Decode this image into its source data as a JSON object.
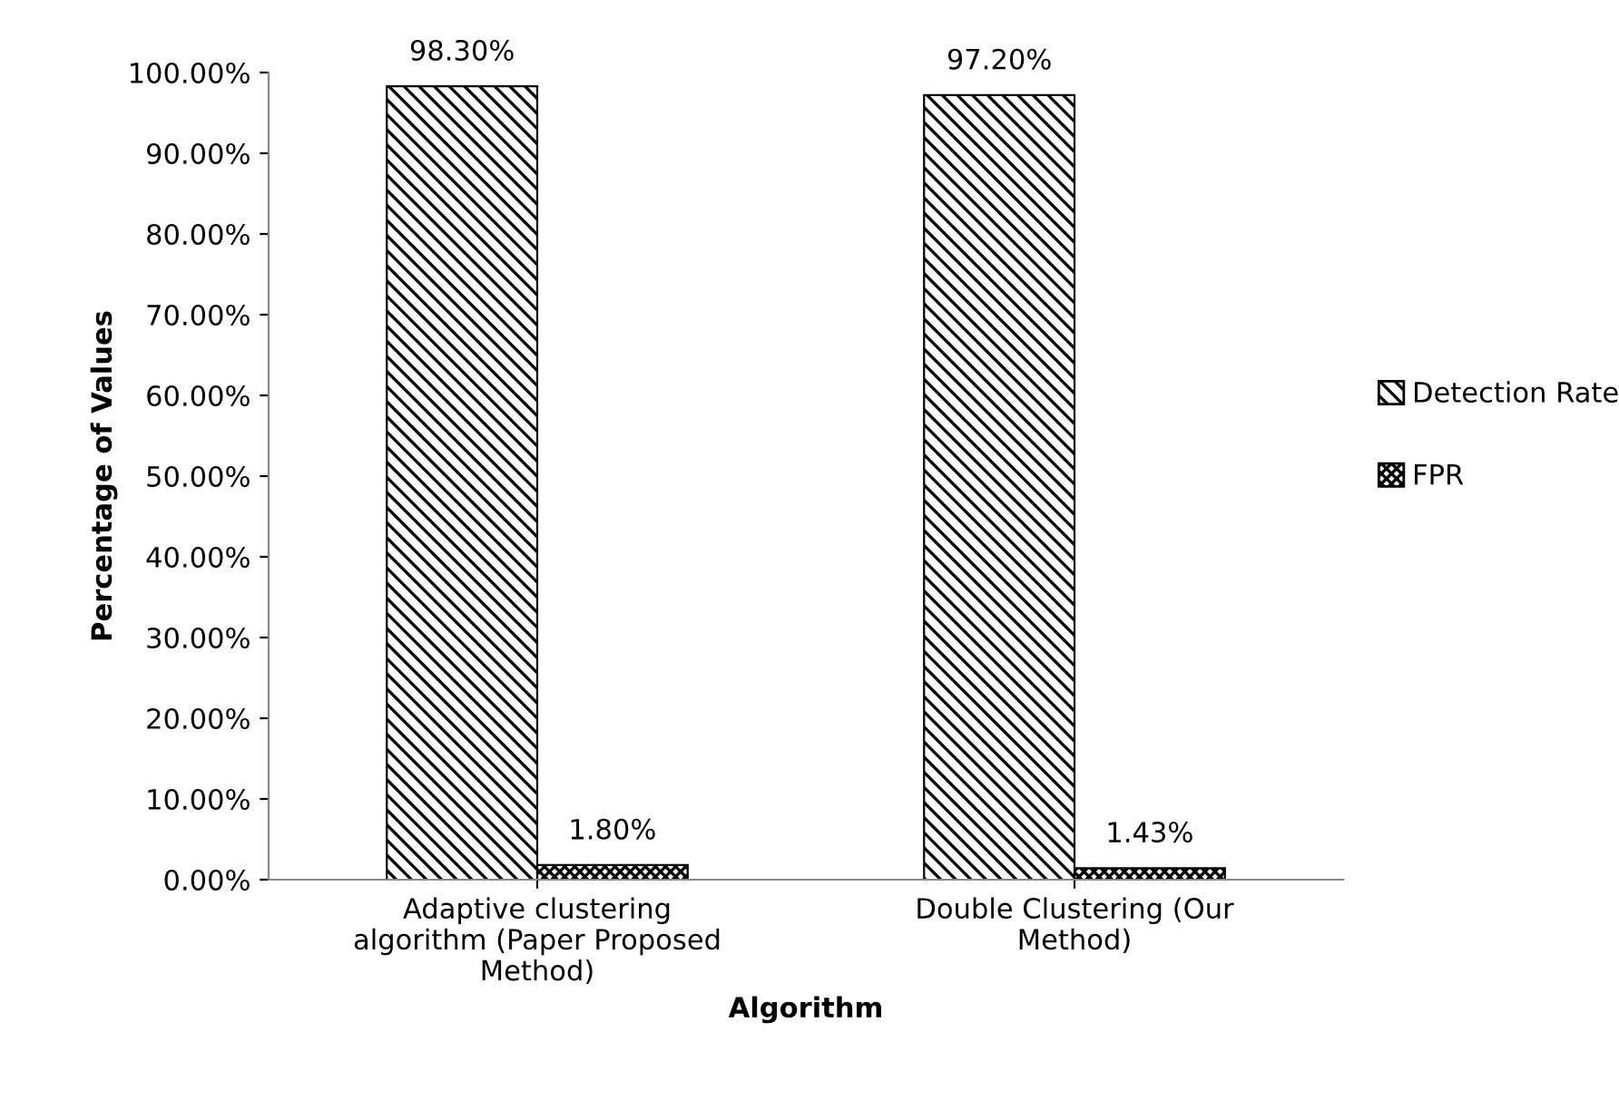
{
  "chart_data": {
    "type": "bar",
    "xlabel": "Algorithm",
    "ylabel": "Percentage of Values",
    "categories": [
      "Adaptive clustering\nalgorithm (Paper Proposed\nMethod)",
      "Double Clustering (Our\nMethod)"
    ],
    "series": [
      {
        "name": "Detection Rate",
        "color": "#000000",
        "values": [
          98.3,
          97.2
        ],
        "value_labels": [
          "98.30%",
          "97.20%"
        ]
      },
      {
        "name": "FPR",
        "color": "#000000",
        "values": [
          1.8,
          1.43
        ],
        "value_labels": [
          "1.80%",
          "1.43%"
        ]
      }
    ],
    "ylim": [
      0,
      100
    ],
    "yticks": [
      {
        "value": 0,
        "label": "0.00%"
      },
      {
        "value": 10,
        "label": "10.00%"
      },
      {
        "value": 20,
        "label": "20.00%"
      },
      {
        "value": 30,
        "label": "30.00%"
      },
      {
        "value": 40,
        "label": "40.00%"
      },
      {
        "value": 50,
        "label": "50.00%"
      },
      {
        "value": 60,
        "label": "60.00%"
      },
      {
        "value": 70,
        "label": "70.00%"
      },
      {
        "value": 80,
        "label": "80.00%"
      },
      {
        "value": 90,
        "label": "90.00%"
      },
      {
        "value": 100,
        "label": "100.00%"
      }
    ],
    "grid": false,
    "legend": "right"
  }
}
